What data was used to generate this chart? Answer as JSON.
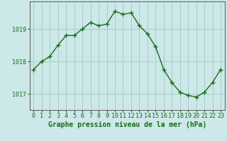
{
  "x": [
    0,
    1,
    2,
    3,
    4,
    5,
    6,
    7,
    8,
    9,
    10,
    11,
    12,
    13,
    14,
    15,
    16,
    17,
    18,
    19,
    20,
    21,
    22,
    23
  ],
  "y": [
    1017.75,
    1018.0,
    1018.15,
    1018.5,
    1018.8,
    1018.8,
    1019.0,
    1019.2,
    1019.1,
    1019.15,
    1019.55,
    1019.45,
    1019.5,
    1019.1,
    1018.85,
    1018.45,
    1017.75,
    1017.35,
    1017.05,
    1016.95,
    1016.9,
    1017.05,
    1017.35,
    1017.75
  ],
  "ylim": [
    1016.5,
    1019.85
  ],
  "yticks": [
    1017,
    1018,
    1019
  ],
  "xticks": [
    0,
    1,
    2,
    3,
    4,
    5,
    6,
    7,
    8,
    9,
    10,
    11,
    12,
    13,
    14,
    15,
    16,
    17,
    18,
    19,
    20,
    21,
    22,
    23
  ],
  "line_color": "#1a6b1a",
  "marker": "+",
  "bg_color": "#cce8e8",
  "grid_color": "#aacccc",
  "xlabel": "Graphe pression niveau de la mer (hPa)",
  "xlabel_fontsize": 7,
  "tick_fontsize": 6,
  "linewidth": 1.0,
  "markersize": 4,
  "markeredgewidth": 1.0
}
